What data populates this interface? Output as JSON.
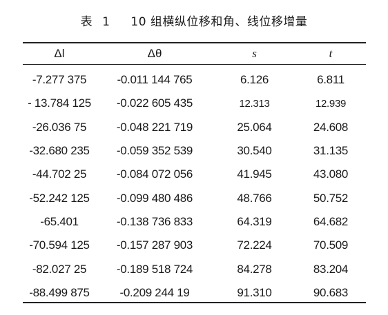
{
  "caption": {
    "label": "表",
    "number": "1",
    "text": "10 组横纵位移和角、线位移增量"
  },
  "table": {
    "headers": [
      "Δl",
      "Δθ",
      "s",
      "t"
    ],
    "rows": [
      [
        "-7.277 375",
        "-0.011 144 765",
        "6.126",
        "6.811"
      ],
      [
        "- 13.784 125",
        "-0.022 605 435",
        "12.313",
        "12.939"
      ],
      [
        "-26.036 75",
        "-0.048 221 719",
        "25.064",
        "24.608"
      ],
      [
        "-32.680 235",
        "-0.059 352 539",
        "30.540",
        "31.135"
      ],
      [
        "-44.702 25",
        "-0.084 072 056",
        "41.945",
        "43.080"
      ],
      [
        "-52.242 125",
        "-0.099 480 486",
        "48.766",
        "50.752"
      ],
      [
        "-65.401",
        "-0.138 736 833",
        "64.319",
        "64.682"
      ],
      [
        "-70.594 125",
        "-0.157 287 903",
        "72.224",
        "70.509"
      ],
      [
        "-82.027 25",
        "-0.189 518 724",
        "84.278",
        "83.204"
      ],
      [
        "-88.499 875",
        "-0.209 244 19",
        "91.310",
        "90.683"
      ]
    ]
  }
}
